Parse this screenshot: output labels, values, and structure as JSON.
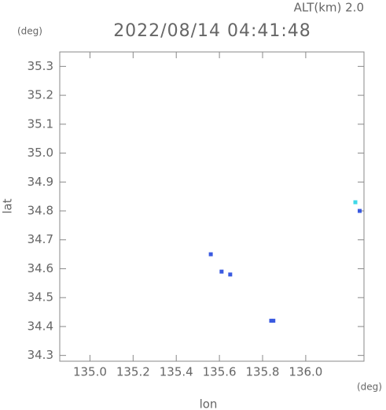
{
  "chart_data": {
    "type": "scatter",
    "title": "2022/08/14 04:41:48",
    "subtitle": "ALT(km) 2.0",
    "x_label": "lon",
    "y_label": "lat",
    "x_unit": "(deg)",
    "y_unit": "(deg)",
    "xlim": [
      134.86,
      136.27
    ],
    "ylim": [
      34.28,
      35.35
    ],
    "xticks": [
      {
        "value": 135,
        "label": "135.0"
      },
      135.2,
      135.4,
      135.6,
      135.8,
      {
        "value": 136,
        "label": "136.0"
      }
    ],
    "yticks": [
      34.3,
      34.4,
      34.5,
      34.6,
      34.7,
      34.8,
      34.9,
      {
        "value": 35,
        "label": "35.0"
      },
      35.1,
      35.2,
      35.3
    ],
    "series": [
      {
        "color": "#3a5ae0",
        "x": [
          135.56,
          135.61,
          135.65,
          135.84,
          135.85,
          136.25
        ],
        "values": [
          34.65,
          34.59,
          34.58,
          34.42,
          34.42,
          34.8
        ]
      },
      {
        "color": "#3fd8e8",
        "x": [
          136.23
        ],
        "values": [
          34.83
        ]
      }
    ]
  }
}
